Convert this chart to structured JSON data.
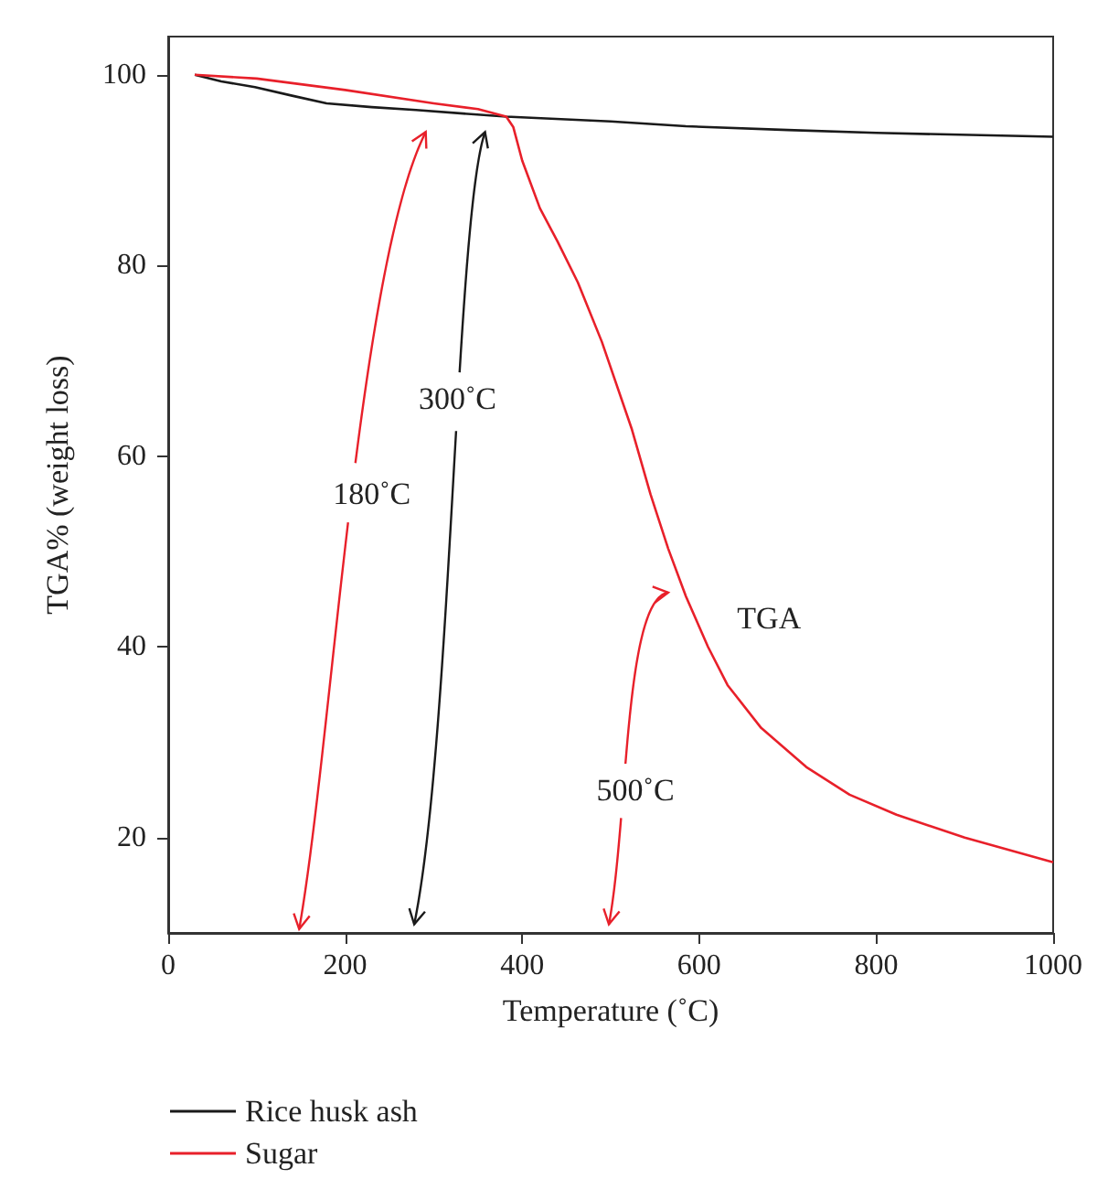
{
  "chart_data": {
    "type": "line",
    "xlabel": "Temperature (˚C)",
    "ylabel": "TGA% (weight loss)",
    "xlim": [
      0,
      1000
    ],
    "xticks": [
      0,
      200,
      400,
      600,
      800,
      {
        "value": 1000,
        "label": "1000"
      }
    ],
    "ylim": [
      10,
      104
    ],
    "yticks": [
      20,
      40,
      60,
      80,
      100
    ],
    "grid": false,
    "legend": "bottom left",
    "marker": "none",
    "line_style": "solid",
    "series": [
      {
        "name": "Rice husk ash",
        "color": "#1a1a1a",
        "x": [
          30,
          60,
          98,
          140,
          179,
          230,
          280,
          382,
          500,
          585,
          700,
          800,
          1000
        ],
        "values": [
          100,
          99.3,
          98.7,
          97.8,
          97.0,
          96.6,
          96.3,
          95.6,
          95.1,
          94.6,
          94.2,
          93.9,
          93.5
        ]
      },
      {
        "name": "Sugar",
        "color": "#e8202a",
        "x": [
          30,
          100,
          200,
          300,
          350,
          382,
          390,
          400,
          420,
          440,
          463,
          490,
          524,
          545,
          565,
          585,
          610,
          632,
          670,
          721,
          770,
          823,
          900,
          1000
        ],
        "values": [
          100,
          99.6,
          98.4,
          97,
          96.4,
          95.6,
          94.5,
          91,
          86,
          82.5,
          78.2,
          72,
          62.8,
          56,
          50.3,
          45.3,
          40,
          36,
          31.5,
          27.4,
          24.5,
          22.4,
          20,
          17.4
        ]
      }
    ],
    "annotations": [
      "180˚C",
      "300˚C",
      "500˚C",
      "TGA"
    ]
  }
}
